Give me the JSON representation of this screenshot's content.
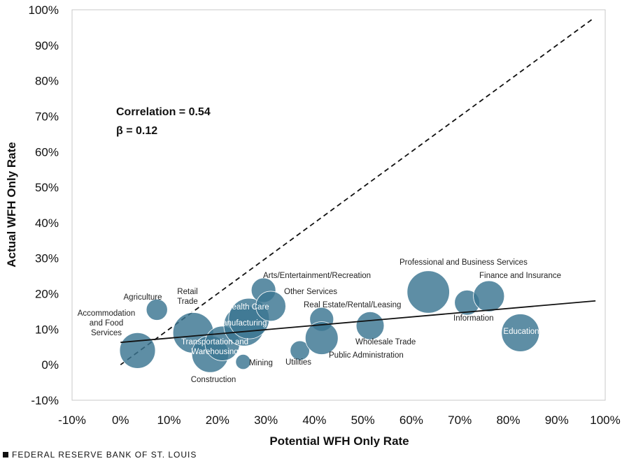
{
  "chart_data": {
    "type": "scatter",
    "xlabel": "Potential WFH Only Rate",
    "ylabel": "Actual WFH Only Rate",
    "xlim": [
      -10,
      100
    ],
    "ylim": [
      -10,
      100
    ],
    "x_ticks": [
      "-10%",
      "0%",
      "10%",
      "20%",
      "30%",
      "40%",
      "50%",
      "60%",
      "70%",
      "80%",
      "90%",
      "100%"
    ],
    "y_ticks": [
      "-10%",
      "0%",
      "10%",
      "20%",
      "30%",
      "40%",
      "50%",
      "60%",
      "70%",
      "80%",
      "90%",
      "100%"
    ],
    "grid": false,
    "bubble_color": "#3b7591",
    "annotations": [
      "Correlation  = 0.54",
      "β = 0.12"
    ],
    "reference_line": {
      "style": "dashed",
      "from": [
        0,
        0
      ],
      "to": [
        97.5,
        97.5
      ]
    },
    "fit_line": {
      "style": "solid",
      "from": [
        0,
        6.3
      ],
      "to": [
        98,
        18
      ]
    },
    "points": [
      {
        "name": "Accommodation and Food Services",
        "x": 3.5,
        "y": 4,
        "size": 8.5
      },
      {
        "name": "Agriculture",
        "x": 7.5,
        "y": 15.5,
        "size": 3
      },
      {
        "name": "Retail Trade",
        "x": 15,
        "y": 9,
        "size": 11
      },
      {
        "name": "Transportation and Warehousing",
        "x": 18.5,
        "y": 3,
        "size": 9
      },
      {
        "name": "Construction",
        "x": 21,
        "y": 6,
        "size": 8
      },
      {
        "name": "Manufacturing",
        "x": 25.5,
        "y": 11,
        "size": 11
      },
      {
        "name": "Health Care",
        "x": 26.5,
        "y": 13,
        "size": 11
      },
      {
        "name": "Mining",
        "x": 25.3,
        "y": 0.8,
        "size": 1.5
      },
      {
        "name": "Arts/Entertainment/Recreation",
        "x": 29.5,
        "y": 21,
        "size": 4
      },
      {
        "name": "Other Services",
        "x": 31,
        "y": 16.5,
        "size": 6
      },
      {
        "name": "Utilities",
        "x": 37,
        "y": 4,
        "size": 2.5
      },
      {
        "name": "Real Estate/Rental/Leasing",
        "x": 41.5,
        "y": 12.8,
        "size": 3.8
      },
      {
        "name": "Public Administration",
        "x": 41.5,
        "y": 7.5,
        "size": 7.2
      },
      {
        "name": "Wholesale Trade",
        "x": 51.5,
        "y": 11,
        "size": 5.2
      },
      {
        "name": "Professional and Business Services",
        "x": 63.5,
        "y": 20.5,
        "size": 12
      },
      {
        "name": "Information",
        "x": 71.5,
        "y": 17.5,
        "size": 4.2
      },
      {
        "name": "Finance and Insurance",
        "x": 76,
        "y": 19.3,
        "size": 6.4
      },
      {
        "name": "Education",
        "x": 82.5,
        "y": 9,
        "size": 9.5
      }
    ]
  },
  "labels": [
    {
      "lines": [
        "Accommodation",
        "and Food",
        "Services"
      ],
      "inside": false
    },
    {
      "lines": [
        "Agriculture"
      ],
      "inside": false
    },
    {
      "lines": [
        "Retail",
        "Trade"
      ],
      "inside": false
    },
    {
      "lines": [
        "Transportation and",
        "Warehousing"
      ],
      "inside": true
    },
    {
      "lines": [
        "Construction"
      ],
      "inside": false
    },
    {
      "lines": [
        "Manufacturing"
      ],
      "inside": true
    },
    {
      "lines": [
        "Health Care"
      ],
      "inside": true
    },
    {
      "lines": [
        "Mining"
      ],
      "inside": false
    },
    {
      "lines": [
        "Arts/Entertainment/Recreation"
      ],
      "inside": false
    },
    {
      "lines": [
        "Other Services"
      ],
      "inside": false
    },
    {
      "lines": [
        "Utilities"
      ],
      "inside": false
    },
    {
      "lines": [
        "Real Estate/Rental/Leasing"
      ],
      "inside": false
    },
    {
      "lines": [
        "Public Administration"
      ],
      "inside": false
    },
    {
      "lines": [
        "Wholesale Trade"
      ],
      "inside": false
    },
    {
      "lines": [
        "Professional and Business Services"
      ],
      "inside": false
    },
    {
      "lines": [
        "Information"
      ],
      "inside": false
    },
    {
      "lines": [
        "Finance and Insurance"
      ],
      "inside": false
    },
    {
      "lines": [
        "Education"
      ],
      "inside": true
    }
  ],
  "footer": {
    "source": "FEDERAL RESERVE BANK OF ST. LOUIS"
  }
}
